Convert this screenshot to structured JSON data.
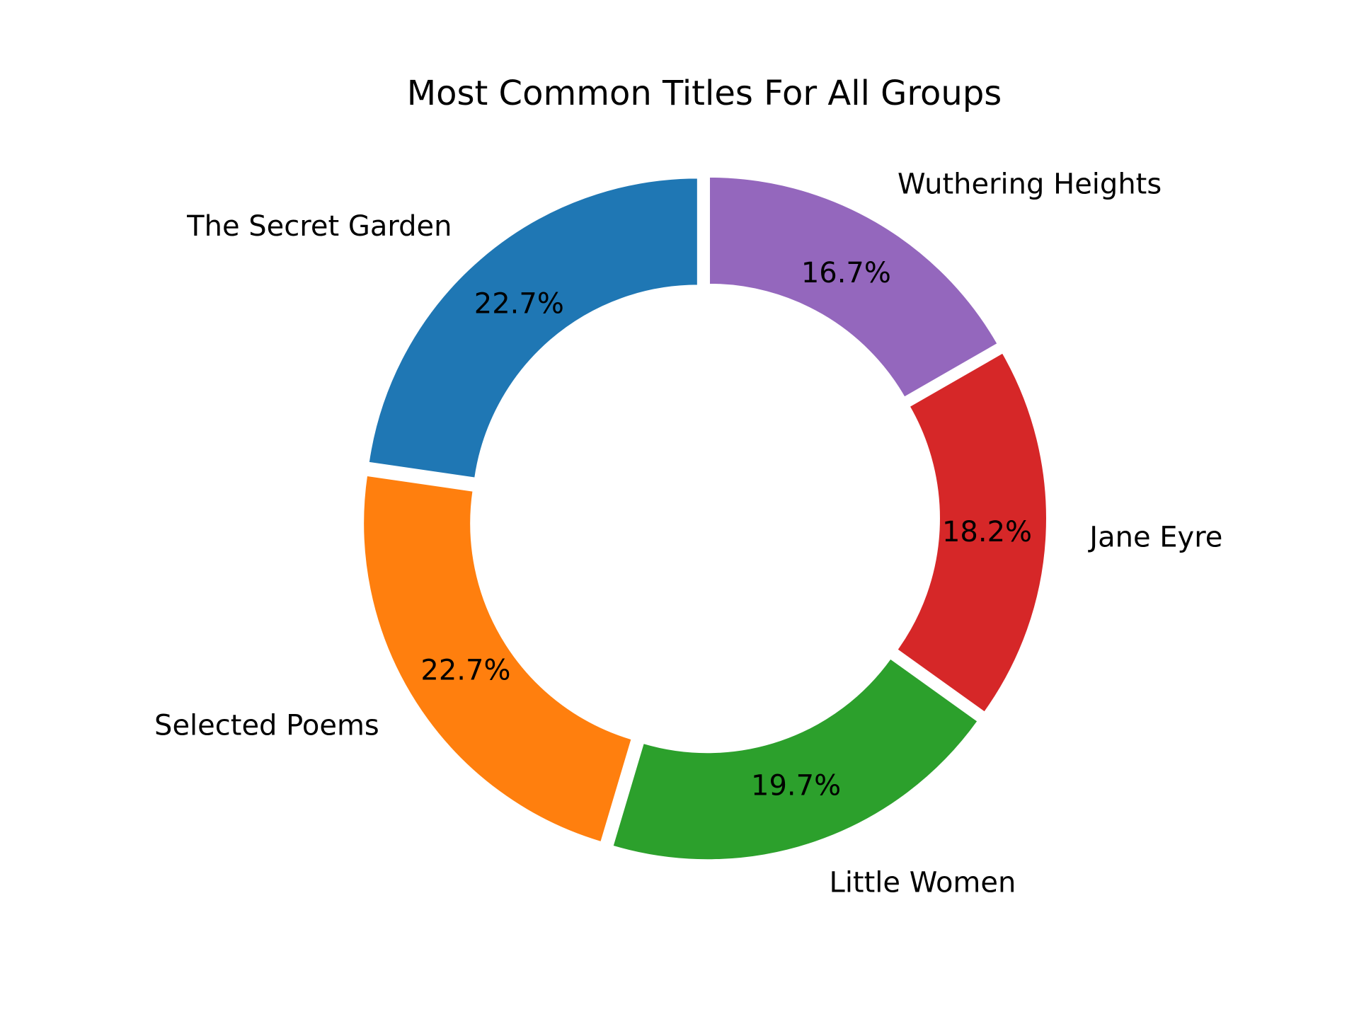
{
  "chart_data": {
    "type": "pie",
    "donut": true,
    "title": "Most Common Titles For All Groups",
    "categories": [
      "The Secret Garden",
      "Selected Poems",
      "Little Women",
      "Jane Eyre",
      "Wuthering Heights"
    ],
    "values": [
      22.7,
      22.7,
      19.7,
      18.2,
      16.7
    ],
    "percent_labels": [
      "22.7%",
      "22.7%",
      "19.7%",
      "18.2%",
      "16.7%"
    ],
    "colors": [
      "#1f77b4",
      "#ff7f0e",
      "#2ca02c",
      "#d62728",
      "#9467bd"
    ],
    "start_angle_deg": 90,
    "direction": "counterclockwise",
    "exploded": true,
    "legend": "none"
  }
}
